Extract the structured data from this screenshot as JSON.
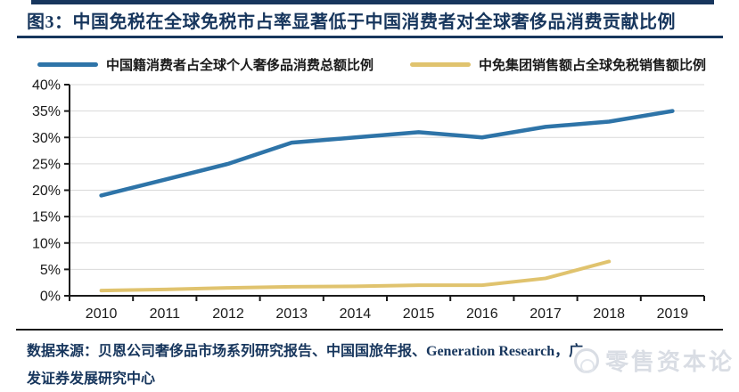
{
  "header": {
    "title": "图3：中国免税在全球免税市占率显著低于中国消费者对全球奢侈品消费贡献比例",
    "accent_color": "#17365D"
  },
  "chart_data": {
    "type": "line",
    "categories": [
      "2010",
      "2011",
      "2012",
      "2013",
      "2014",
      "2015",
      "2016",
      "2017",
      "2018",
      "2019"
    ],
    "series": [
      {
        "name": "中国籍消费者占全球个人奢侈品消费总额比例",
        "color": "#2E74A8",
        "values": [
          19,
          22,
          25,
          29,
          30,
          31,
          30,
          32,
          33,
          35
        ]
      },
      {
        "name": "中免集团销售额占全球免税销售额比例",
        "color": "#E0C36E",
        "values": [
          1,
          1.2,
          1.5,
          1.7,
          1.8,
          2,
          2,
          3.3,
          6.5,
          null
        ]
      }
    ],
    "title": "",
    "xlabel": "",
    "ylabel": "",
    "ylim": [
      0,
      40
    ],
    "ytick_step": 5,
    "ytick_suffix": "%",
    "grid": "horizontal",
    "grid_color": "#D9D9D9",
    "axis_color": "#1a1a1a",
    "legend_position": "top"
  },
  "footer": {
    "line1": "数据来源：贝恩公司奢侈品市场系列研究报告、中国国旅年报、Generation Research，广",
    "line2": "发证券发展研究中心"
  },
  "watermark": {
    "text": "零售资本论",
    "color": "#D9DDE4"
  }
}
